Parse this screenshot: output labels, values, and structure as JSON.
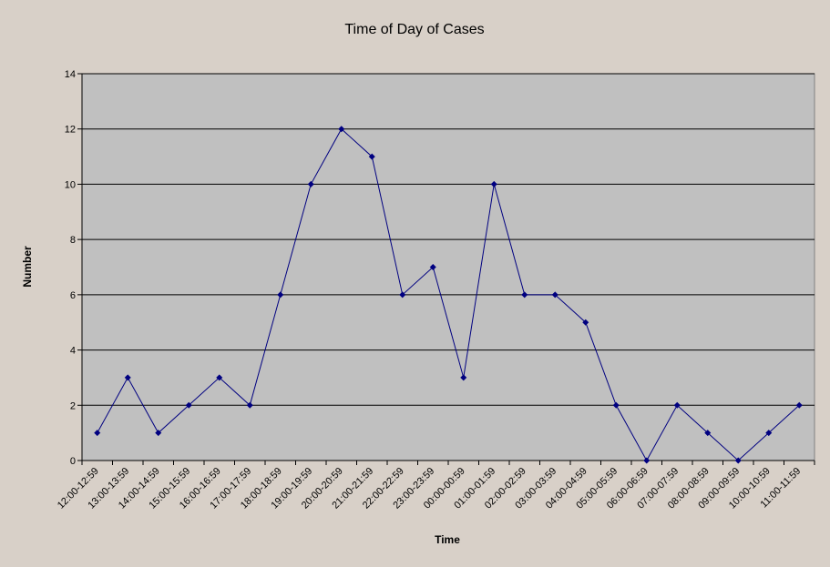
{
  "chart_data": {
    "type": "line",
    "title": "Time of Day of Cases",
    "xlabel": "Time",
    "ylabel": "Number",
    "ylim": [
      0,
      14
    ],
    "yticks": [
      "0",
      "2",
      "4",
      "6",
      "8",
      "10",
      "12",
      "14"
    ],
    "grid": true,
    "legend": "none",
    "colors": {
      "background": "#d8d0c8",
      "plot_area": "#c0c0c0",
      "series": "#000080",
      "grid": "#000000"
    },
    "categories": [
      "12:00-12:59",
      "13:00-13:59",
      "14:00-14:59",
      "15:00-15:59",
      "16:00-16:59",
      "17:00-17:59",
      "18:00-18:59",
      "19:00-19:59",
      "20:00-20:59",
      "21:00-21:59",
      "22:00-22:59",
      "23:00-23:59",
      "00:00-00:59",
      "01:00-01:59",
      "02:00-02:59",
      "03:00-03:59",
      "04:00-04:59",
      "05:00-05:59",
      "06:00-06:59",
      "07:00-07:59",
      "08:00-08:59",
      "09:00-09:59",
      "10:00-10:59",
      "11:00-11:59"
    ],
    "series": [
      {
        "values": [
          1,
          3,
          1,
          2,
          3,
          2,
          6,
          10,
          12,
          11,
          6,
          7,
          3,
          10,
          6,
          6,
          5,
          2,
          0,
          2,
          1,
          0,
          1,
          2
        ]
      }
    ]
  }
}
